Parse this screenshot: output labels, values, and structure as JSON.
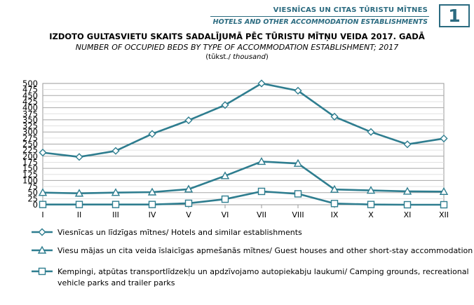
{
  "header": {
    "section_lv": "VIESNĪCAS UN CITAS TŪRISTU MĪTNES",
    "section_en": "HOTELS AND OTHER ACCOMMODATION ESTABLISHMENTS",
    "chapter_number": "1",
    "accent_color": "#2b6b80"
  },
  "chart_data": {
    "type": "line",
    "title": "IZDOTO GULTASVIETU SKAITS SADALĪJUMĀ PĒC TŪRISTU MĪTŅU VEIDA 2017. GADĀ",
    "subtitle": "NUMBER OF OCCUPIED BEDS BY TYPE OF ACCOMMODATION ESTABLISHMENT; 2017",
    "unit_lv": "tūkst.",
    "unit_en": "thousand",
    "categories": [
      "I",
      "II",
      "III",
      "IV",
      "V",
      "VI",
      "VII",
      "VIII",
      "IX",
      "X",
      "XI",
      "XII"
    ],
    "ylim": [
      0,
      500
    ],
    "yticks": [
      0,
      25,
      50,
      75,
      100,
      125,
      150,
      175,
      200,
      225,
      250,
      275,
      300,
      325,
      350,
      375,
      400,
      425,
      450,
      475,
      500
    ],
    "ygrid_major": [
      0,
      50,
      100,
      150,
      200,
      250,
      300,
      350,
      400,
      450,
      500
    ],
    "grid": true,
    "legend_position": "bottom",
    "line_color": "#2e7d8f",
    "series": [
      {
        "name": "Viesnīcas un līdzīgas mītnes/ Hotels and similar establishments",
        "marker": "diamond",
        "values": [
          215,
          197,
          222,
          292,
          348,
          411,
          500,
          470,
          363,
          300,
          249,
          273
        ]
      },
      {
        "name": "Viesu mājas un cita veida īslaicīgas apmešanās mītnes/ Guest houses and other short-stay accommodation",
        "marker": "triangle",
        "values": [
          50,
          47,
          50,
          52,
          64,
          119,
          178,
          170,
          63,
          59,
          55,
          54
        ]
      },
      {
        "name": "Kempingi, atpūtas transportlīdzekļu un apdzīvojamo autopiekabju laukumi/ Camping grounds, recreational vehicle parks and trailer parks",
        "marker": "square",
        "values": [
          1,
          1,
          1,
          1,
          6,
          23,
          55,
          45,
          5,
          1,
          0,
          0
        ]
      }
    ]
  }
}
